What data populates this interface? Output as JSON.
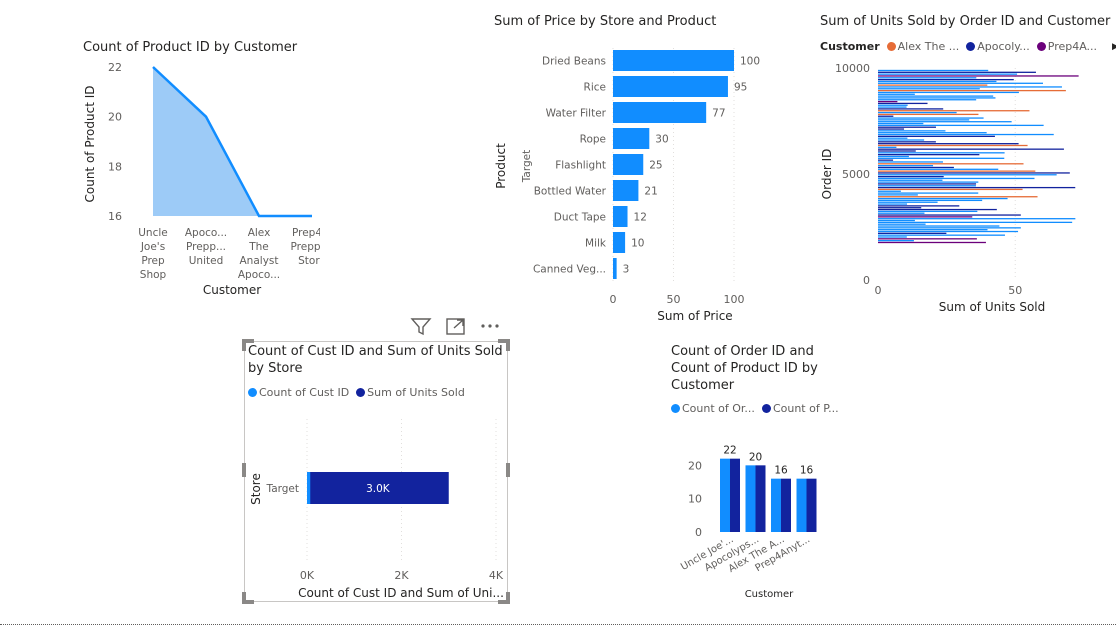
{
  "colors": {
    "primary": "#118DFF",
    "area_fill": "#9DCBF7",
    "dark_blue": "#12239E",
    "orange": "#E66C37",
    "purple": "#6B007B",
    "axis_text": "#605e5c",
    "grid": "#e1dfdd"
  },
  "toolbar": {
    "icons": [
      "filter-icon",
      "focus-mode-icon",
      "more-options-icon"
    ]
  },
  "chart_data": [
    {
      "id": "area",
      "type": "area",
      "title": "Count of Product ID by Customer",
      "xlabel": "Customer",
      "ylabel": "Count of Product ID",
      "categories": [
        [
          "Uncle",
          "Joe's",
          "Prep",
          "Shop"
        ],
        [
          "Apoco...",
          "Prepp...",
          "United"
        ],
        [
          "Alex",
          "The",
          "Analyst",
          "Apoco..."
        ],
        [
          "Prep4...",
          "Preppi...",
          "Store"
        ]
      ],
      "values": [
        22,
        20,
        16,
        16
      ],
      "ylim": [
        16,
        22
      ],
      "yticks": [
        "22",
        "20",
        "18",
        "16"
      ]
    },
    {
      "id": "bar",
      "type": "bar",
      "title": "Sum of Price by Store and Product",
      "xlabel": "Sum of Price",
      "ylabel": "Product",
      "group_label": "Target",
      "categories": [
        "Dried Beans",
        "Rice",
        "Water Filter",
        "Rope",
        "Flashlight",
        "Bottled Water",
        "Duct Tape",
        "Milk",
        "Canned Veg..."
      ],
      "values": [
        100,
        95,
        77,
        30,
        25,
        21,
        12,
        10,
        3
      ],
      "value_labels": [
        "100",
        "95",
        "77",
        "30",
        "25",
        "21",
        "12",
        "10",
        "3"
      ],
      "xlim": [
        0,
        100
      ],
      "xticks": [
        "0",
        "50",
        "100"
      ]
    },
    {
      "id": "units",
      "type": "bar",
      "title": "Sum of Units Sold by Order ID and Customer",
      "xlabel": "Sum of Units Sold",
      "ylabel": "Order ID",
      "legend_title": "Customer",
      "legend": [
        "Alex The ...",
        "Apocoly...",
        "Prep4A..."
      ],
      "yticks": [
        "10000",
        "5000",
        "0"
      ],
      "xticks": [
        "0",
        "50"
      ],
      "ylim": [
        0,
        10000
      ],
      "xlim": [
        0,
        75
      ]
    },
    {
      "id": "store",
      "type": "bar",
      "title": "Count of Cust ID and Sum of Units Sold by Store",
      "legend": [
        "Count of Cust ID",
        "Sum of Units Sold"
      ],
      "ylabel": "Store",
      "xlabel": "Count of Cust ID and Sum of Uni...",
      "categories": [
        "Target"
      ],
      "series": [
        {
          "name": "Count of Cust ID",
          "values": [
            69
          ]
        },
        {
          "name": "Sum of Units Sold",
          "values": [
            3000
          ]
        }
      ],
      "data_label": "3.0K",
      "xlim": [
        0,
        4000
      ],
      "xticks": [
        "0K",
        "2K",
        "4K"
      ]
    },
    {
      "id": "grouped",
      "type": "bar",
      "title": "Count of Order ID and Count of Product ID by Customer",
      "legend": [
        "Count of Or...",
        "Count of P..."
      ],
      "xlabel": "Customer",
      "categories": [
        "Uncle Joe'...",
        "Apocolyps...",
        "Alex The A...",
        "Prep4Anyt..."
      ],
      "series": [
        {
          "name": "Count of Order ID",
          "values": [
            22,
            20,
            16,
            16
          ]
        },
        {
          "name": "Count of Product ID",
          "values": [
            22,
            20,
            16,
            16
          ]
        }
      ],
      "value_labels": [
        "22",
        "20",
        "16",
        "16"
      ],
      "ylim": [
        0,
        24
      ],
      "yticks": [
        "20",
        "10",
        "0"
      ]
    }
  ]
}
